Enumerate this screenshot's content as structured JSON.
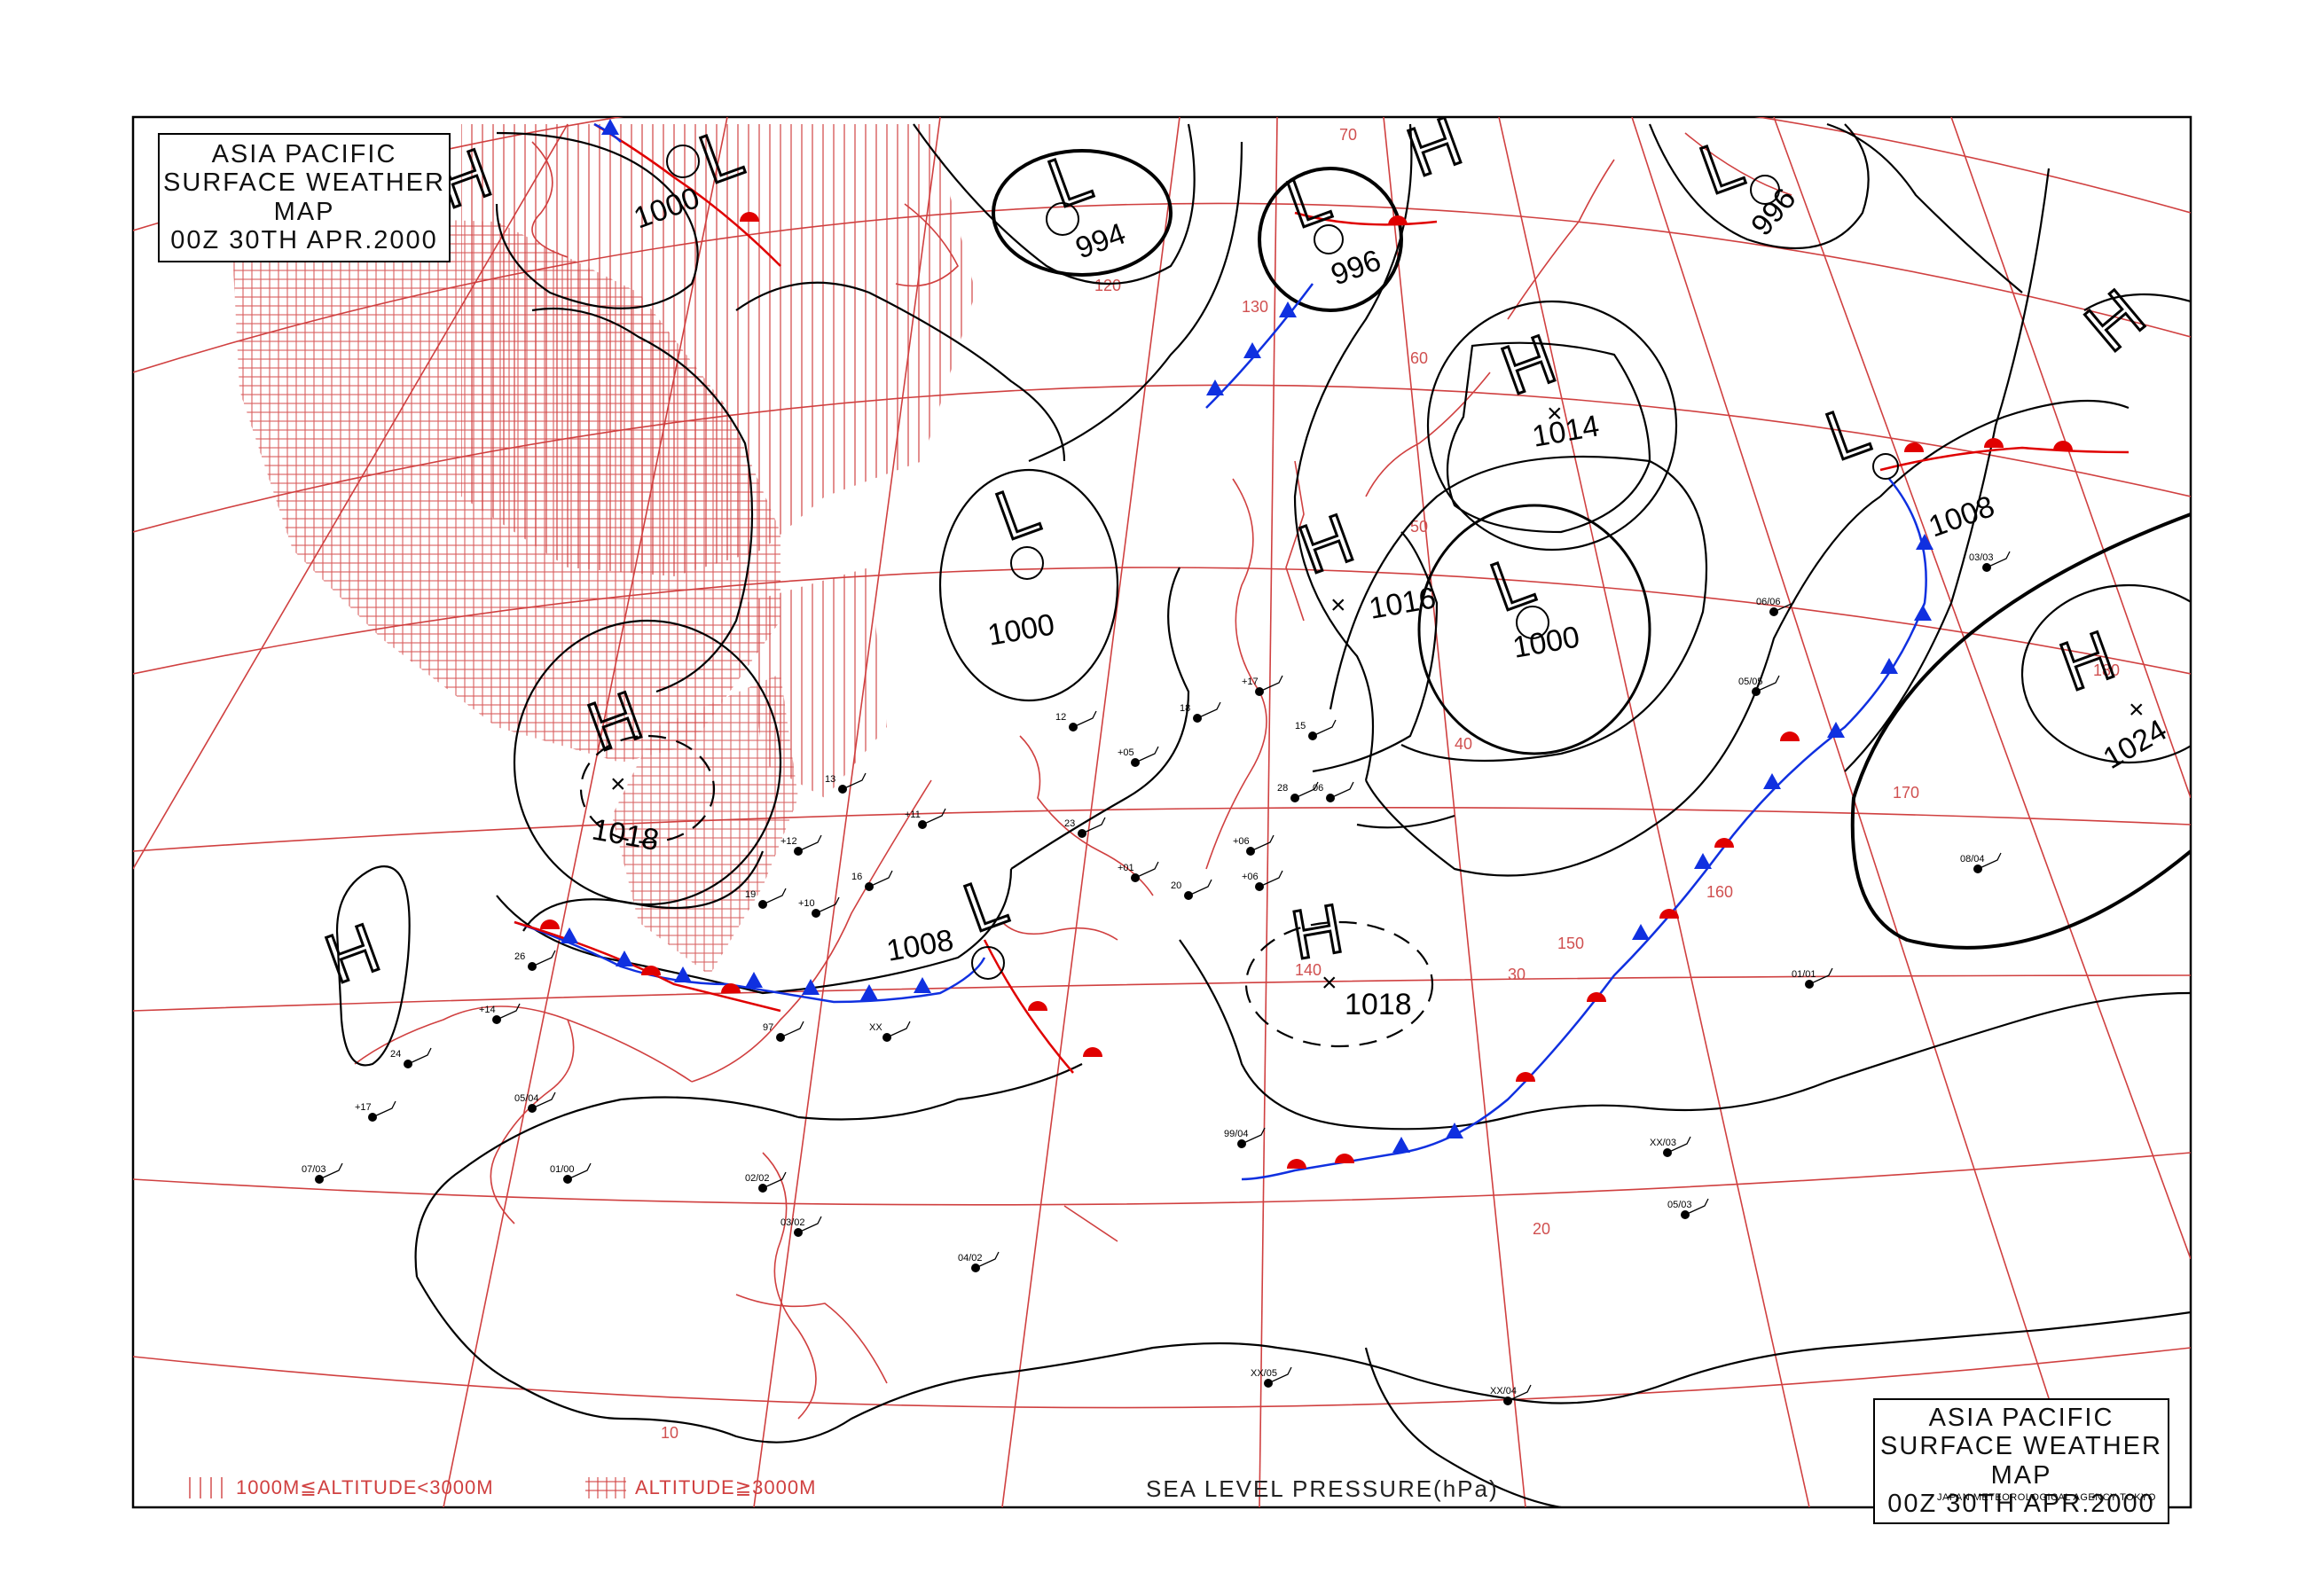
{
  "map": {
    "title_lines": [
      "ASIA PACIFIC",
      "SURFACE WEATHER MAP",
      "00Z 30TH APR.2000"
    ],
    "legend": {
      "mid_altitude": "1000M≦ALTITUDE<3000M",
      "high_altitude": "ALTITUDE≧3000M"
    },
    "variable_label": "SEA LEVEL PRESSURE(hPa)",
    "agency": "JAPAN METEOROLOGICAL AGENCY TOKYO",
    "colors": {
      "isobar": "#000000",
      "geography": "#d04040",
      "warm_front": "#e00000",
      "cold_front": "#1030e0",
      "terrain_hatch": "#d04040"
    }
  },
  "pressure_systems": [
    {
      "type": "L",
      "value": "1000",
      "region": "north Siberia"
    },
    {
      "type": "L",
      "value": "994",
      "region": "Okhotsk west"
    },
    {
      "type": "L",
      "value": "996",
      "region": "Sakhalin north"
    },
    {
      "type": "L",
      "value": "996",
      "region": "Aleutians north"
    },
    {
      "type": "L",
      "value": "1000",
      "region": "Manchuria"
    },
    {
      "type": "L",
      "value": "1000",
      "region": "Kuril east"
    },
    {
      "type": "L",
      "value": "1008",
      "region": "Central China"
    },
    {
      "type": "L",
      "value": "1008",
      "region": "North Pacific"
    },
    {
      "type": "H",
      "value": "1014",
      "region": "Kamchatka south"
    },
    {
      "type": "H",
      "value": "1016",
      "region": "Hokkaido east"
    },
    {
      "type": "H",
      "value": "1018",
      "region": "Mongolia"
    },
    {
      "type": "H",
      "value": "1018",
      "region": "South of Japan"
    },
    {
      "type": "H",
      "value": "1024",
      "region": "East Pacific"
    },
    {
      "type": "H",
      "value": "",
      "region": "Tibet"
    },
    {
      "type": "H",
      "value": "",
      "region": "Siberia west"
    },
    {
      "type": "H",
      "value": "",
      "region": "Bering"
    },
    {
      "type": "H",
      "value": "",
      "region": "Alaska"
    }
  ],
  "grid_labels": {
    "latitudes": [
      "70",
      "60",
      "50",
      "40",
      "30",
      "20",
      "10"
    ],
    "longitudes": [
      "120",
      "130",
      "140",
      "150",
      "160",
      "170",
      "180"
    ]
  },
  "observations": [
    {
      "text": "13"
    },
    {
      "text": "+12"
    },
    {
      "text": "19"
    },
    {
      "text": "+10"
    },
    {
      "text": "16"
    },
    {
      "text": "+11"
    },
    {
      "text": "12"
    },
    {
      "text": "+05"
    },
    {
      "text": "18"
    },
    {
      "text": "+17"
    },
    {
      "text": "15"
    },
    {
      "text": "06"
    },
    {
      "text": "23"
    },
    {
      "text": "+01"
    },
    {
      "text": "20"
    },
    {
      "text": "+06"
    },
    {
      "text": "28"
    },
    {
      "text": "+06"
    },
    {
      "text": "XX"
    },
    {
      "text": "97"
    },
    {
      "text": "26"
    },
    {
      "text": "+14"
    },
    {
      "text": "24"
    },
    {
      "text": "+17"
    },
    {
      "text": "07/03"
    },
    {
      "text": "05/04"
    },
    {
      "text": "01/00"
    },
    {
      "text": "02/02"
    },
    {
      "text": "03/02"
    },
    {
      "text": "04/02"
    },
    {
      "text": "99/04"
    },
    {
      "text": "XX/05"
    },
    {
      "text": "XX/04"
    },
    {
      "text": "XX/03"
    },
    {
      "text": "05/03"
    },
    {
      "text": "01/01"
    },
    {
      "text": "05/05"
    },
    {
      "text": "06/06"
    },
    {
      "text": "03/03"
    },
    {
      "text": "08/04"
    }
  ]
}
